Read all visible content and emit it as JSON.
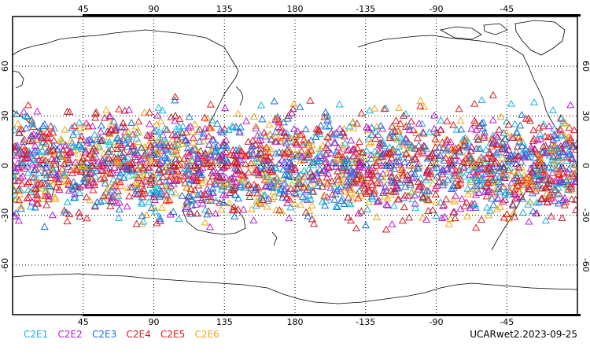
{
  "map": {
    "projection": "cylindrical equidistant",
    "center_longitude": 180,
    "lat_range": [
      -90,
      90
    ],
    "lon_range": [
      0,
      360
    ],
    "gridlines": "dotted",
    "lon_ticks": [
      "45",
      "90",
      "135",
      "180",
      "-135",
      "-90",
      "-45"
    ],
    "lat_ticks": [
      "60",
      "30",
      "0",
      "-30",
      "-60"
    ],
    "marker_shape": "open triangle",
    "observation_band_lat": [
      -45,
      45
    ]
  },
  "legend": {
    "items": [
      {
        "label": "C2E1",
        "color": "#18b4d8"
      },
      {
        "label": "C2E2",
        "color": "#b81cd0"
      },
      {
        "label": "C2E3",
        "color": "#1a6fe0"
      },
      {
        "label": "C2E4",
        "color": "#c8202c"
      },
      {
        "label": "C2E5",
        "color": "#f01818"
      },
      {
        "label": "C2E6",
        "color": "#f0a818"
      }
    ]
  },
  "product_label": "UCARwet2.2023-09-25",
  "colors": {
    "coastline": "#000000",
    "grid": "#000000",
    "background": "#ffffff"
  }
}
